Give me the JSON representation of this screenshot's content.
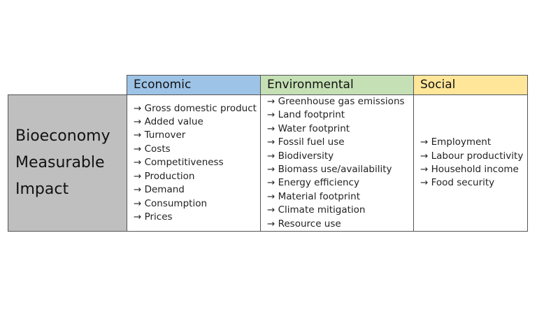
{
  "row_header": {
    "lines": [
      "Bioeconomy",
      "Measurable",
      "Impact"
    ]
  },
  "columns": [
    {
      "title": "Economic",
      "items": [
        "→ Gross domestic product",
        "→ Added value",
        "→ Turnover",
        "→ Costs",
        "→ Competitiveness",
        "→ Production",
        "→ Demand",
        "→ Consumption",
        "→ Prices"
      ]
    },
    {
      "title": "Environmental",
      "items": [
        "→ Greenhouse gas emissions",
        "→ Land footprint",
        "→ Water footprint",
        "→ Fossil fuel use",
        "→ Biodiversity",
        "→ Biomass use/availability",
        "→ Energy efficiency",
        "→ Material footprint",
        "→ Climate mitigation",
        "→ Resource use"
      ]
    },
    {
      "title": "Social",
      "items": [
        "→ Employment",
        "→ Labour productivity",
        "→ Household income",
        "→ Food security"
      ]
    }
  ]
}
